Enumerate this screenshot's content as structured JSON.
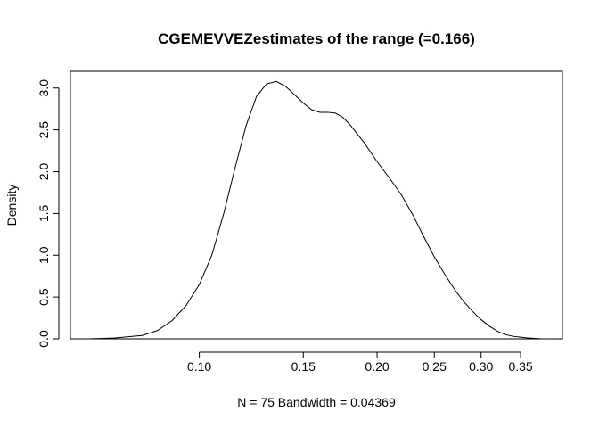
{
  "chart_data": {
    "type": "line",
    "title": "CGEMEVVEZestimates of the range (=0.166)",
    "xlabel": "N = 75   Bandwidth = 0.04369",
    "ylabel": "Density",
    "x_scale": "log",
    "xlim": [
      0.0605,
      0.412
    ],
    "ylim": [
      0,
      3.2
    ],
    "x_ticks": [
      0.1,
      0.15,
      0.2,
      0.25,
      0.3,
      0.35
    ],
    "x_tick_labels": [
      "0.10",
      "0.15",
      "0.20",
      "0.25",
      "0.30",
      "0.35"
    ],
    "y_ticks": [
      0,
      0.5,
      1.0,
      1.5,
      2.0,
      2.5,
      3.0
    ],
    "y_tick_labels": [
      "0.0",
      "0.5",
      "1.0",
      "1.5",
      "2.0",
      "2.5",
      "3.0"
    ],
    "grid": false,
    "series": [
      {
        "x": [
          0.065,
          0.072,
          0.08,
          0.085,
          0.09,
          0.095,
          0.1,
          0.105,
          0.11,
          0.115,
          0.12,
          0.125,
          0.13,
          0.135,
          0.14,
          0.145,
          0.15,
          0.155,
          0.16,
          0.165,
          0.17,
          0.175,
          0.18,
          0.19,
          0.2,
          0.21,
          0.22,
          0.23,
          0.24,
          0.25,
          0.26,
          0.27,
          0.28,
          0.29,
          0.3,
          0.31,
          0.32,
          0.33,
          0.34,
          0.35,
          0.36,
          0.38,
          0.4
        ],
        "y": [
          0.0,
          0.01,
          0.04,
          0.1,
          0.22,
          0.4,
          0.65,
          1.0,
          1.5,
          2.05,
          2.55,
          2.9,
          3.05,
          3.08,
          3.02,
          2.92,
          2.82,
          2.74,
          2.71,
          2.71,
          2.7,
          2.65,
          2.56,
          2.35,
          2.12,
          1.92,
          1.72,
          1.48,
          1.22,
          0.98,
          0.78,
          0.6,
          0.45,
          0.33,
          0.23,
          0.15,
          0.09,
          0.05,
          0.03,
          0.02,
          0.01,
          0.0,
          0.0
        ]
      }
    ]
  }
}
